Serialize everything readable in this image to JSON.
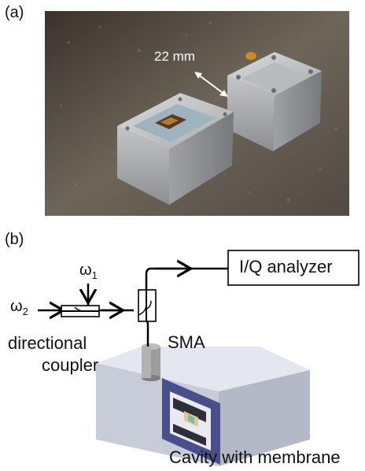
{
  "panel_a": {
    "label": "(a)",
    "dimension_label": "22 mm"
  },
  "panel_b": {
    "label": "(b)",
    "omega1": "ω",
    "omega1_sub": "1",
    "omega2": "ω",
    "omega2_sub": "2",
    "analyzer_label": "I/Q analyzer",
    "coupler_label_line1": "directional",
    "coupler_label_line2": "coupler",
    "sma_label": "SMA",
    "cavity_label": "Cavity with membrane"
  },
  "colors": {
    "line": "#000000",
    "cavity_top": "#dfe3ec",
    "cavity_front": "#c8ccd8",
    "cavity_side": "#aeb3c2",
    "membrane_frame": "#4a4f8c",
    "sma_connector": "#9c9c9c"
  }
}
